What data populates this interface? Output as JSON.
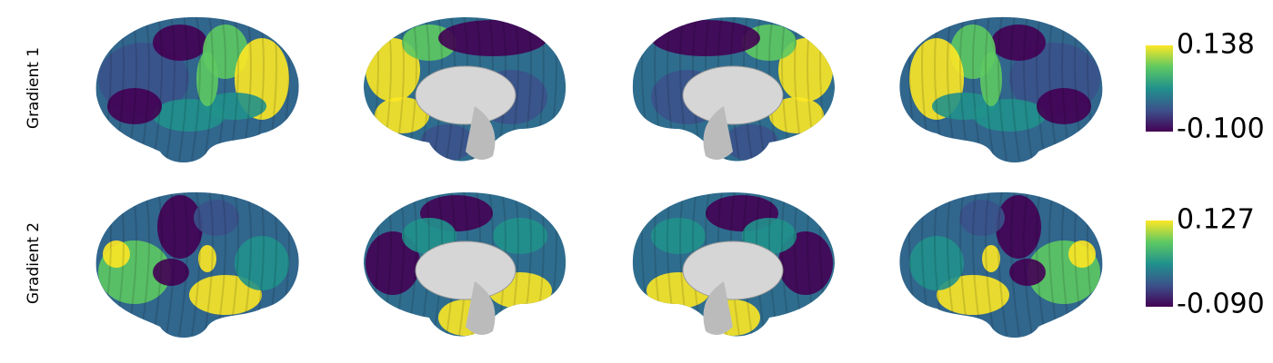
{
  "rows": [
    {
      "label": "Gradient 1",
      "colorbar": {
        "max": "0.138",
        "min": "-0.100"
      }
    },
    {
      "label": "Gradient 2",
      "colorbar": {
        "max": "0.127",
        "min": "-0.090"
      }
    }
  ]
}
